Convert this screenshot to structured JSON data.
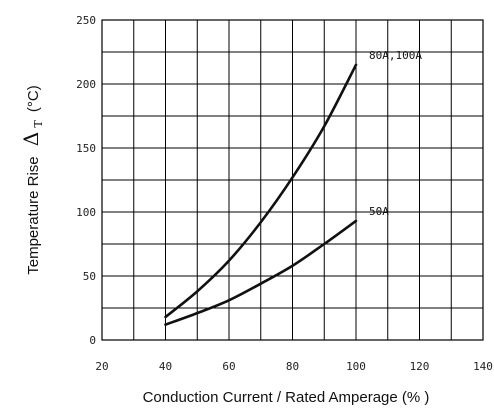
{
  "chart_data": {
    "type": "line",
    "xlabel": "Conduction Current / Rated Amperage (% )",
    "ylabel": {
      "prefix": "Temperature Rise",
      "symbol": "Δ",
      "subscript": "T",
      "unit": "(°C)"
    },
    "xlim": [
      20,
      140
    ],
    "ylim": [
      0,
      250
    ],
    "x_ticks": [
      20,
      40,
      60,
      80,
      100,
      120,
      140
    ],
    "y_ticks": [
      0,
      50,
      100,
      150,
      200,
      250
    ],
    "x_minor_step": 10,
    "y_minor_step": 25,
    "grid": true,
    "series": [
      {
        "name": "80A,100A",
        "x": [
          40,
          50,
          60,
          70,
          80,
          90,
          100
        ],
        "y": [
          18,
          38,
          62,
          92,
          127,
          167,
          215
        ]
      },
      {
        "name": "50A",
        "x": [
          40,
          50,
          60,
          70,
          80,
          90,
          100
        ],
        "y": [
          12,
          21,
          31,
          44,
          58,
          75,
          93
        ]
      }
    ],
    "colors": {
      "line": "#111111",
      "grid": "#000000"
    }
  }
}
